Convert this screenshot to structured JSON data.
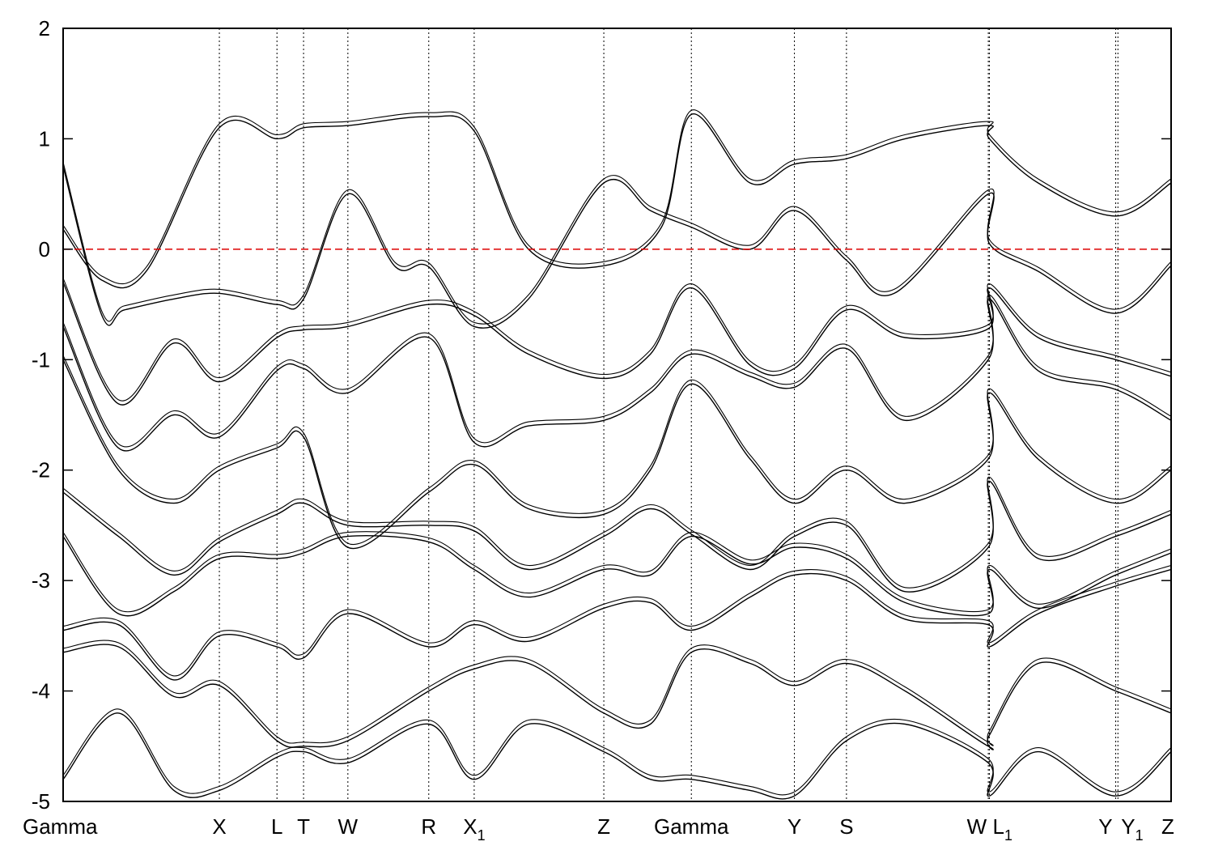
{
  "chart_data": {
    "type": "line",
    "title": "",
    "xlabel": "",
    "ylabel": "",
    "ylim": [
      -5,
      2
    ],
    "yticks": [
      -5,
      -4,
      -3,
      -2,
      -1,
      0,
      1,
      2
    ],
    "ytick_labels": [
      "-5",
      "-4",
      "-3",
      "-2",
      "-1",
      "0",
      "1",
      "2"
    ],
    "grid": "vertical dotted lines at high-symmetry points",
    "fermi_level": {
      "y": 0,
      "style": "dashed",
      "color": "#dd0000"
    },
    "high_symmetry_points": [
      {
        "label": "Gamma",
        "sub": "",
        "k": 0.0
      },
      {
        "label": "X",
        "sub": "",
        "k": 1.41
      },
      {
        "label": "L",
        "sub": "",
        "k": 1.93
      },
      {
        "label": "T",
        "sub": "",
        "k": 2.17
      },
      {
        "label": "W",
        "sub": "",
        "k": 2.57
      },
      {
        "label": "R",
        "sub": "",
        "k": 3.3
      },
      {
        "label": "X",
        "sub": "1",
        "k": 3.71
      },
      {
        "label": "Z",
        "sub": "",
        "k": 4.88
      },
      {
        "label": "Gamma",
        "sub": "",
        "k": 5.67
      },
      {
        "label": "Y",
        "sub": "",
        "k": 6.6
      },
      {
        "label": "S",
        "sub": "",
        "k": 7.07
      },
      {
        "label": "W",
        "sub": "",
        "k": 8.35
      },
      {
        "label": "L",
        "sub": "1",
        "k": 8.36
      },
      {
        "label": "Y",
        "sub": "",
        "k": 9.5
      },
      {
        "label": "Y",
        "sub": "1",
        "k": 9.52
      },
      {
        "label": "Z",
        "sub": "",
        "k": 10.0
      }
    ],
    "series": [
      {
        "values": [
          [
            0,
            0.18
          ],
          [
            0.35,
            -0.28
          ],
          [
            0.75,
            -0.2
          ],
          [
            1.41,
            1.1
          ],
          [
            1.93,
            1.0
          ],
          [
            2.17,
            1.1
          ],
          [
            2.57,
            1.12
          ],
          [
            3.3,
            1.2
          ],
          [
            3.71,
            1.07
          ],
          [
            4.2,
            0.0
          ],
          [
            4.88,
            -0.15
          ],
          [
            5.4,
            0.2
          ],
          [
            5.67,
            1.22
          ],
          [
            6.2,
            0.6
          ],
          [
            6.6,
            0.77
          ],
          [
            7.07,
            0.82
          ],
          [
            7.6,
            1.0
          ],
          [
            8.35,
            1.12
          ],
          [
            8.36,
            1.0
          ],
          [
            8.8,
            0.6
          ],
          [
            9.5,
            0.3
          ],
          [
            10.0,
            0.6
          ]
        ]
      },
      {
        "values": [
          [
            0,
            0.75
          ],
          [
            0.35,
            -0.6
          ],
          [
            0.55,
            -0.55
          ],
          [
            1.0,
            -0.45
          ],
          [
            1.41,
            -0.4
          ],
          [
            1.93,
            -0.5
          ],
          [
            2.17,
            -0.45
          ],
          [
            2.57,
            0.5
          ],
          [
            3.0,
            -0.16
          ],
          [
            3.3,
            -0.16
          ],
          [
            3.71,
            -0.7
          ],
          [
            4.2,
            -0.45
          ],
          [
            4.88,
            0.6
          ],
          [
            5.3,
            0.35
          ],
          [
            5.67,
            0.2
          ],
          [
            6.2,
            0.0
          ],
          [
            6.6,
            0.35
          ],
          [
            7.07,
            -0.1
          ],
          [
            7.5,
            -0.4
          ],
          [
            8.35,
            0.5
          ],
          [
            8.36,
            0.05
          ],
          [
            8.8,
            -0.2
          ],
          [
            9.5,
            -0.58
          ],
          [
            10.0,
            -0.15
          ]
        ]
      },
      {
        "values": [
          [
            0,
            -0.3
          ],
          [
            0.5,
            -1.4
          ],
          [
            1.0,
            -0.85
          ],
          [
            1.41,
            -1.2
          ],
          [
            1.93,
            -0.8
          ],
          [
            2.17,
            -0.73
          ],
          [
            2.57,
            -0.7
          ],
          [
            3.3,
            -0.5
          ],
          [
            3.71,
            -0.6
          ],
          [
            4.2,
            -0.95
          ],
          [
            4.88,
            -1.17
          ],
          [
            5.3,
            -0.95
          ],
          [
            5.67,
            -0.35
          ],
          [
            6.2,
            -1.05
          ],
          [
            6.6,
            -1.08
          ],
          [
            7.07,
            -0.55
          ],
          [
            7.6,
            -0.8
          ],
          [
            8.35,
            -0.72
          ],
          [
            8.36,
            -0.35
          ],
          [
            8.8,
            -0.8
          ],
          [
            9.5,
            -1.0
          ],
          [
            10.0,
            -1.15
          ]
        ]
      },
      {
        "values": [
          [
            0,
            -0.7
          ],
          [
            0.5,
            -1.8
          ],
          [
            1.0,
            -1.5
          ],
          [
            1.41,
            -1.7
          ],
          [
            1.93,
            -1.1
          ],
          [
            2.17,
            -1.08
          ],
          [
            2.57,
            -1.3
          ],
          [
            3.3,
            -0.8
          ],
          [
            3.71,
            -1.75
          ],
          [
            4.2,
            -1.6
          ],
          [
            4.88,
            -1.55
          ],
          [
            5.3,
            -1.3
          ],
          [
            5.67,
            -0.95
          ],
          [
            6.2,
            -1.15
          ],
          [
            6.6,
            -1.25
          ],
          [
            7.07,
            -0.9
          ],
          [
            7.6,
            -1.55
          ],
          [
            8.35,
            -1.0
          ],
          [
            8.36,
            -0.45
          ],
          [
            8.8,
            -1.1
          ],
          [
            9.5,
            -1.27
          ],
          [
            10.0,
            -1.55
          ]
        ]
      },
      {
        "values": [
          [
            0,
            -1.0
          ],
          [
            0.5,
            -2.0
          ],
          [
            1.0,
            -2.3
          ],
          [
            1.41,
            -2.0
          ],
          [
            1.93,
            -1.8
          ],
          [
            2.17,
            -1.7
          ],
          [
            2.57,
            -2.7
          ],
          [
            3.3,
            -2.2
          ],
          [
            3.71,
            -1.95
          ],
          [
            4.2,
            -2.35
          ],
          [
            4.88,
            -2.4
          ],
          [
            5.3,
            -2.0
          ],
          [
            5.67,
            -1.22
          ],
          [
            6.2,
            -1.9
          ],
          [
            6.6,
            -2.3
          ],
          [
            7.07,
            -2.0
          ],
          [
            7.6,
            -2.3
          ],
          [
            8.35,
            -1.9
          ],
          [
            8.36,
            -1.3
          ],
          [
            8.8,
            -1.9
          ],
          [
            9.5,
            -2.3
          ],
          [
            10.0,
            -2.0
          ]
        ]
      },
      {
        "values": [
          [
            0,
            -2.2
          ],
          [
            0.5,
            -2.6
          ],
          [
            1.0,
            -2.95
          ],
          [
            1.41,
            -2.65
          ],
          [
            1.93,
            -2.4
          ],
          [
            2.17,
            -2.3
          ],
          [
            2.57,
            -2.5
          ],
          [
            3.3,
            -2.5
          ],
          [
            3.71,
            -2.55
          ],
          [
            4.2,
            -2.9
          ],
          [
            4.88,
            -2.6
          ],
          [
            5.3,
            -2.35
          ],
          [
            5.67,
            -2.58
          ],
          [
            6.2,
            -2.9
          ],
          [
            6.6,
            -2.6
          ],
          [
            7.07,
            -2.5
          ],
          [
            7.6,
            -3.1
          ],
          [
            8.35,
            -2.7
          ],
          [
            8.36,
            -2.1
          ],
          [
            8.8,
            -2.8
          ],
          [
            9.5,
            -2.6
          ],
          [
            10.0,
            -2.4
          ]
        ]
      },
      {
        "values": [
          [
            0,
            -2.6
          ],
          [
            0.5,
            -3.3
          ],
          [
            1.0,
            -3.1
          ],
          [
            1.41,
            -2.8
          ],
          [
            1.93,
            -2.8
          ],
          [
            2.17,
            -2.75
          ],
          [
            2.57,
            -2.6
          ],
          [
            3.3,
            -2.65
          ],
          [
            3.71,
            -2.9
          ],
          [
            4.2,
            -3.15
          ],
          [
            4.88,
            -2.9
          ],
          [
            5.3,
            -2.95
          ],
          [
            5.67,
            -2.6
          ],
          [
            6.2,
            -2.85
          ],
          [
            6.6,
            -2.7
          ],
          [
            7.07,
            -2.8
          ],
          [
            7.6,
            -3.2
          ],
          [
            8.35,
            -3.3
          ],
          [
            8.36,
            -2.9
          ],
          [
            8.8,
            -3.25
          ],
          [
            9.5,
            -2.95
          ],
          [
            10.0,
            -2.75
          ]
        ]
      },
      {
        "values": [
          [
            0,
            -3.45
          ],
          [
            0.5,
            -3.4
          ],
          [
            1.0,
            -3.9
          ],
          [
            1.41,
            -3.5
          ],
          [
            1.93,
            -3.6
          ],
          [
            2.17,
            -3.7
          ],
          [
            2.57,
            -3.3
          ],
          [
            3.3,
            -3.6
          ],
          [
            3.71,
            -3.4
          ],
          [
            4.2,
            -3.55
          ],
          [
            4.88,
            -3.25
          ],
          [
            5.3,
            -3.2
          ],
          [
            5.67,
            -3.45
          ],
          [
            6.2,
            -3.15
          ],
          [
            6.6,
            -2.95
          ],
          [
            7.07,
            -3.0
          ],
          [
            7.6,
            -3.35
          ],
          [
            8.35,
            -3.4
          ],
          [
            8.36,
            -3.6
          ],
          [
            8.8,
            -3.3
          ],
          [
            9.5,
            -3.05
          ],
          [
            10.0,
            -2.9
          ]
        ]
      },
      {
        "values": [
          [
            0,
            -3.65
          ],
          [
            0.5,
            -3.6
          ],
          [
            1.0,
            -4.05
          ],
          [
            1.41,
            -3.95
          ],
          [
            1.93,
            -4.45
          ],
          [
            2.17,
            -4.5
          ],
          [
            2.57,
            -4.45
          ],
          [
            3.3,
            -4.0
          ],
          [
            3.71,
            -3.8
          ],
          [
            4.2,
            -3.75
          ],
          [
            4.88,
            -4.2
          ],
          [
            5.3,
            -4.3
          ],
          [
            5.67,
            -3.65
          ],
          [
            6.2,
            -3.75
          ],
          [
            6.6,
            -3.95
          ],
          [
            7.07,
            -3.75
          ],
          [
            7.6,
            -4.0
          ],
          [
            8.35,
            -4.5
          ],
          [
            8.36,
            -4.4
          ],
          [
            8.8,
            -3.75
          ],
          [
            9.5,
            -4.0
          ],
          [
            10.0,
            -4.2
          ]
        ]
      },
      {
        "values": [
          [
            0,
            -4.8
          ],
          [
            0.5,
            -4.2
          ],
          [
            1.0,
            -4.9
          ],
          [
            1.41,
            -4.9
          ],
          [
            1.93,
            -4.6
          ],
          [
            2.17,
            -4.55
          ],
          [
            2.57,
            -4.65
          ],
          [
            3.3,
            -4.3
          ],
          [
            3.71,
            -4.8
          ],
          [
            4.2,
            -4.3
          ],
          [
            4.88,
            -4.55
          ],
          [
            5.3,
            -4.8
          ],
          [
            5.67,
            -4.8
          ],
          [
            6.2,
            -4.9
          ],
          [
            6.6,
            -4.95
          ],
          [
            7.07,
            -4.45
          ],
          [
            7.6,
            -4.3
          ],
          [
            8.35,
            -4.65
          ],
          [
            8.36,
            -4.95
          ],
          [
            8.8,
            -4.55
          ],
          [
            9.5,
            -4.95
          ],
          [
            10.0,
            -4.55
          ]
        ]
      }
    ]
  }
}
